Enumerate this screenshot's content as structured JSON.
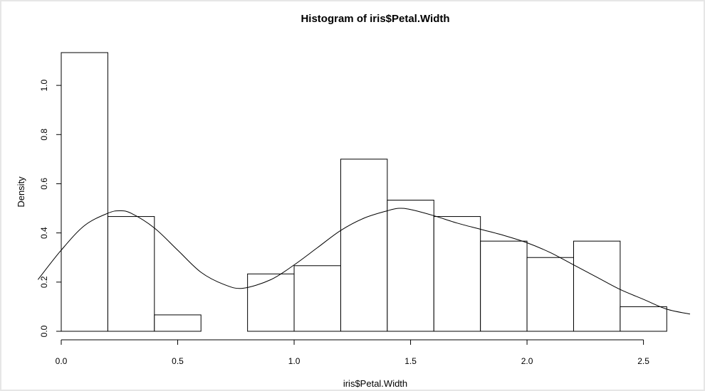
{
  "chart_data": {
    "type": "bar",
    "title": "Histogram of iris$Petal.Width",
    "xlabel": "iris$Petal.Width",
    "ylabel": "Density",
    "xlim": [
      0.0,
      2.7
    ],
    "ylim": [
      0.0,
      1.1333
    ],
    "grid": false,
    "bins": [
      {
        "x0": 0.0,
        "x1": 0.2,
        "density": 1.1333
      },
      {
        "x0": 0.2,
        "x1": 0.4,
        "density": 0.4667
      },
      {
        "x0": 0.4,
        "x1": 0.6,
        "density": 0.0667
      },
      {
        "x0": 0.6,
        "x1": 0.8,
        "density": 0.0
      },
      {
        "x0": 0.8,
        "x1": 1.0,
        "density": 0.2333
      },
      {
        "x0": 1.0,
        "x1": 1.2,
        "density": 0.2667
      },
      {
        "x0": 1.2,
        "x1": 1.4,
        "density": 0.7
      },
      {
        "x0": 1.4,
        "x1": 1.6,
        "density": 0.5333
      },
      {
        "x0": 1.6,
        "x1": 1.8,
        "density": 0.4667
      },
      {
        "x0": 1.8,
        "x1": 2.0,
        "density": 0.3667
      },
      {
        "x0": 2.0,
        "x1": 2.2,
        "density": 0.3
      },
      {
        "x0": 2.2,
        "x1": 2.4,
        "density": 0.3667
      },
      {
        "x0": 2.4,
        "x1": 2.6,
        "density": 0.1
      }
    ],
    "density_curve": {
      "x": [
        -0.1,
        0.0,
        0.1,
        0.2,
        0.25,
        0.3,
        0.4,
        0.5,
        0.6,
        0.7,
        0.78,
        0.9,
        1.0,
        1.1,
        1.2,
        1.3,
        1.4,
        1.45,
        1.5,
        1.6,
        1.7,
        1.8,
        1.9,
        2.0,
        2.1,
        2.2,
        2.3,
        2.4,
        2.5,
        2.6,
        2.7
      ],
      "y": [
        0.21,
        0.33,
        0.43,
        0.48,
        0.49,
        0.48,
        0.42,
        0.33,
        0.24,
        0.19,
        0.175,
        0.21,
        0.27,
        0.34,
        0.41,
        0.46,
        0.49,
        0.5,
        0.495,
        0.47,
        0.44,
        0.415,
        0.39,
        0.36,
        0.32,
        0.27,
        0.22,
        0.17,
        0.13,
        0.09,
        0.07
      ]
    },
    "x_ticks": [
      {
        "value": 0.0,
        "label": "0.0"
      },
      {
        "value": 0.5,
        "label": "0.5"
      },
      {
        "value": 1.0,
        "label": "1.0"
      },
      {
        "value": 1.5,
        "label": "1.5"
      },
      {
        "value": 2.0,
        "label": "2.0"
      },
      {
        "value": 2.5,
        "label": "2.5"
      }
    ],
    "y_ticks": [
      {
        "value": 0.0,
        "label": "0.0"
      },
      {
        "value": 0.2,
        "label": "0.2"
      },
      {
        "value": 0.4,
        "label": "0.4"
      },
      {
        "value": 0.6,
        "label": "0.6"
      },
      {
        "value": 0.8,
        "label": "0.8"
      },
      {
        "value": 1.0,
        "label": "1.0"
      }
    ]
  }
}
